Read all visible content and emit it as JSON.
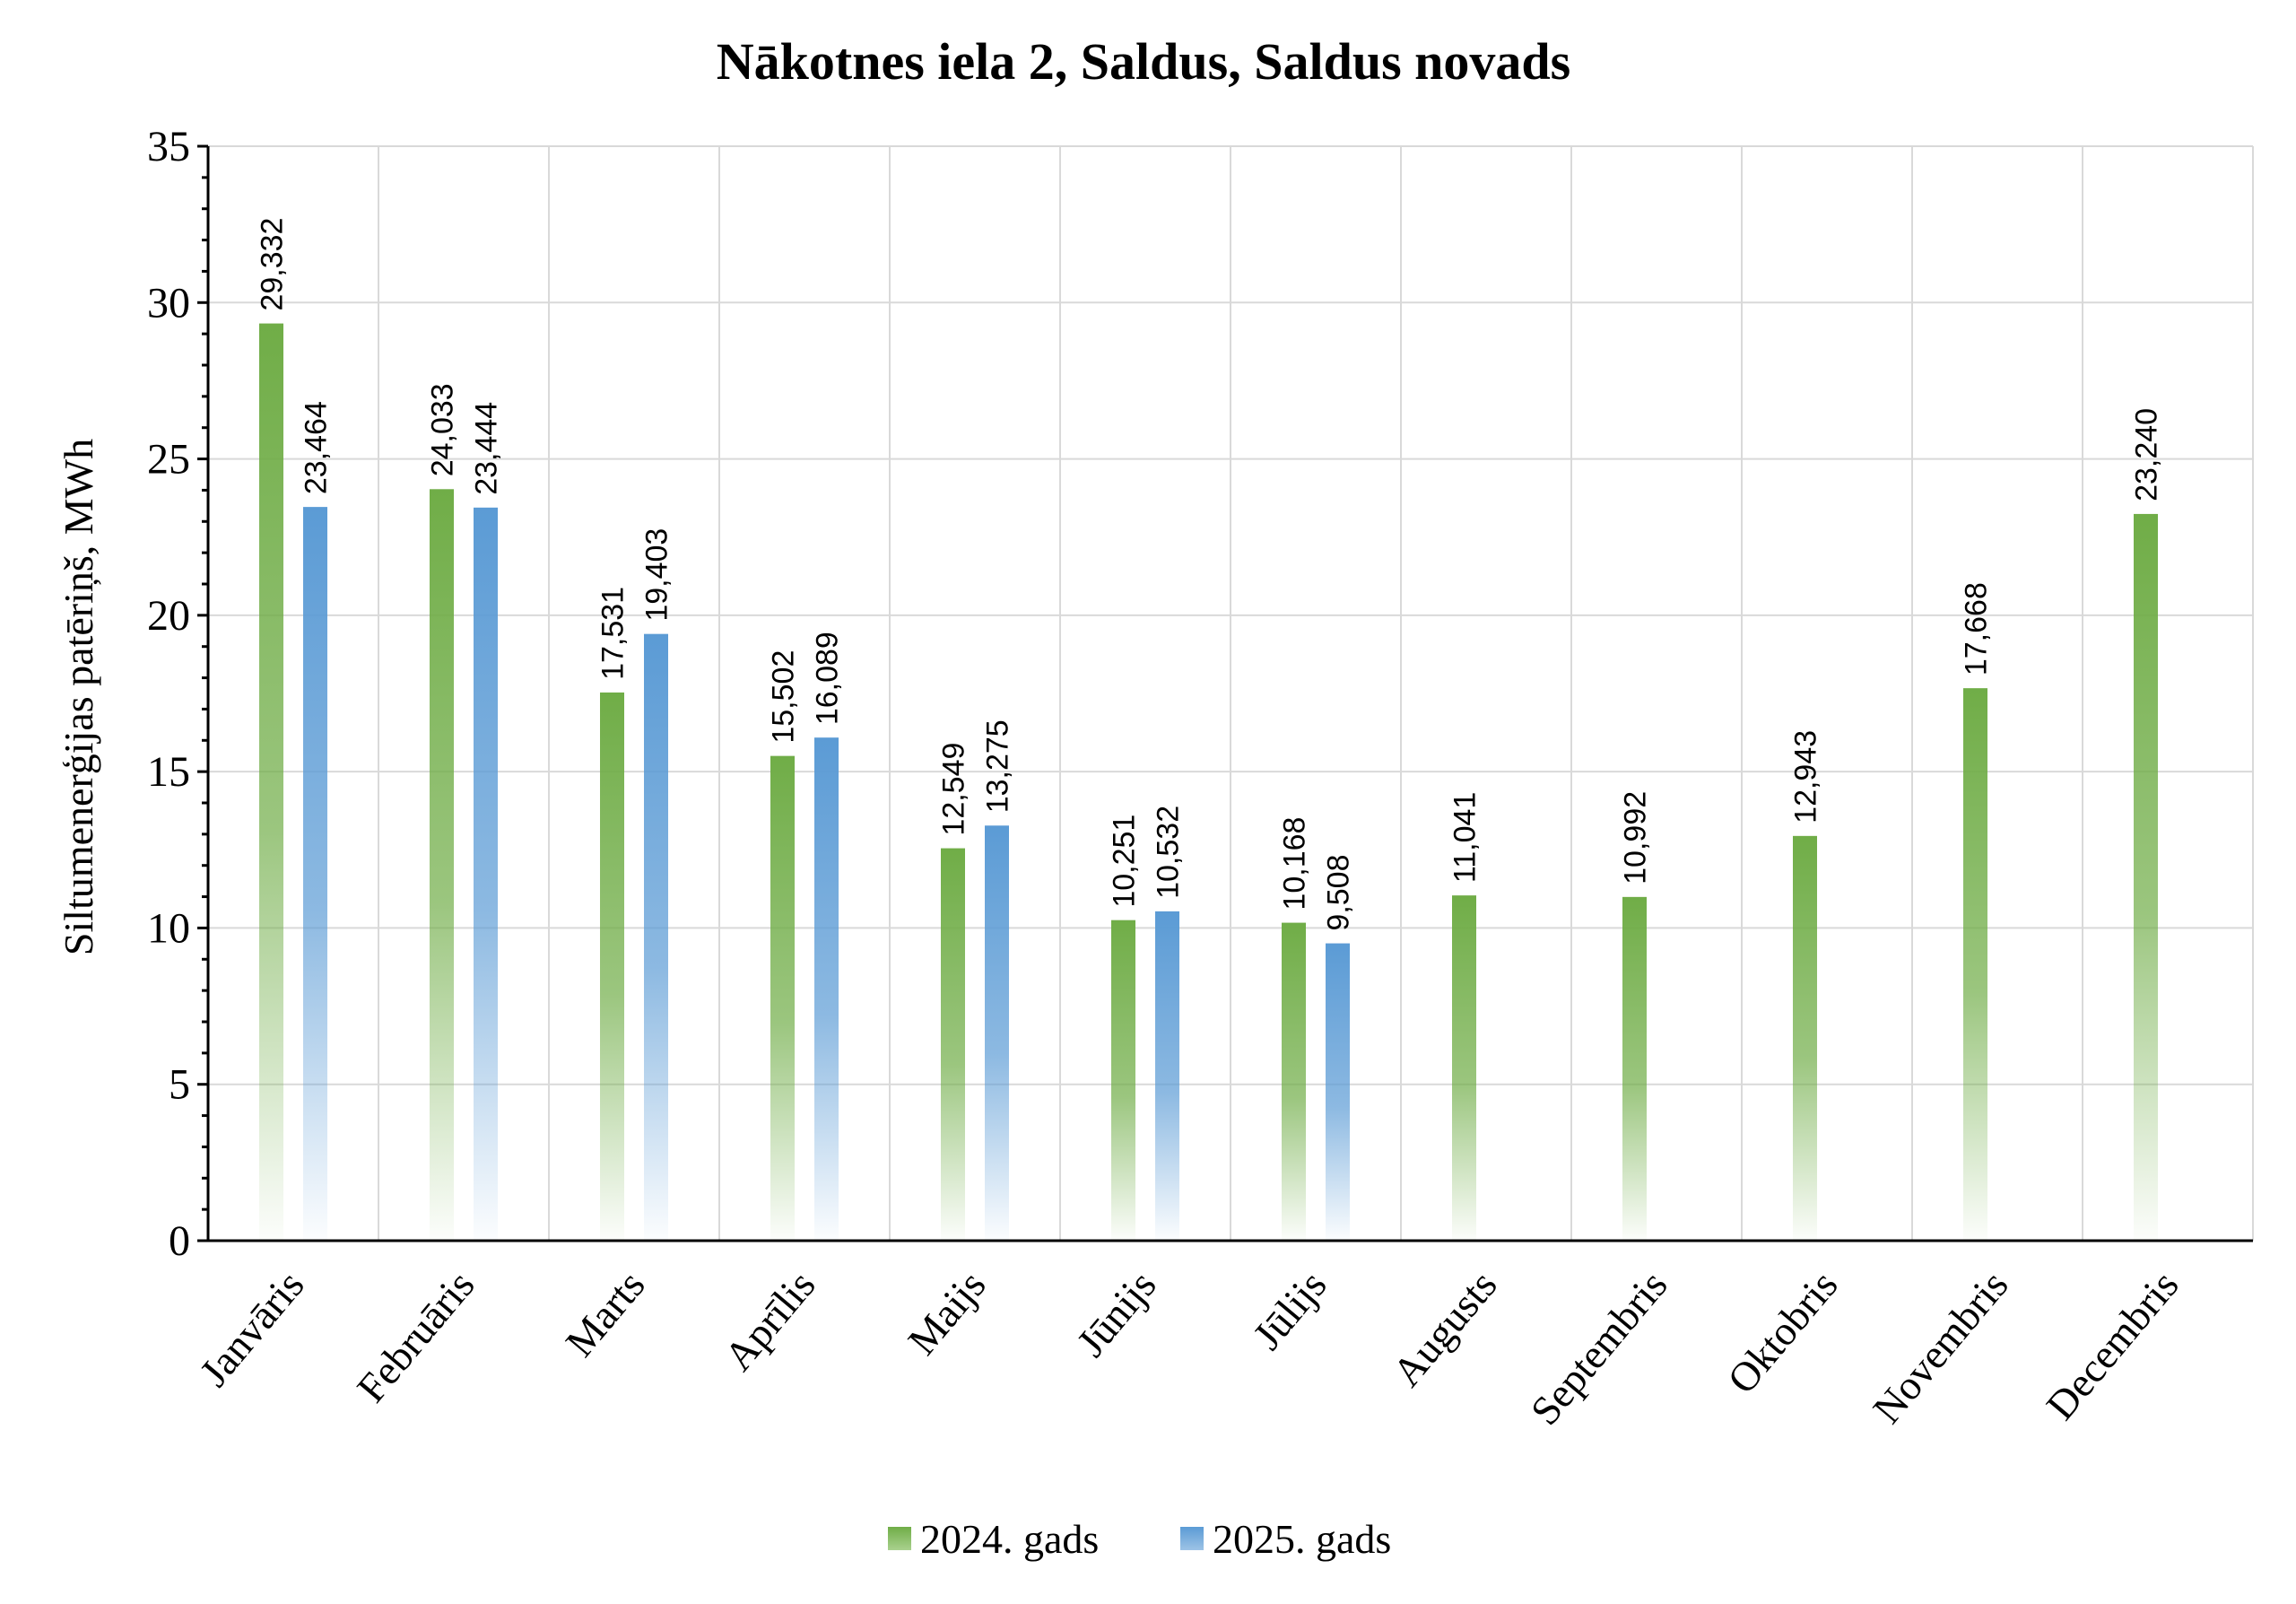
{
  "chart_data": {
    "type": "bar",
    "title": "Nākotnes iela 2, Saldus, Saldus novads",
    "xlabel": "",
    "ylabel": "Siltumenerģijas patēriņš, MWh",
    "ylim": [
      0,
      35
    ],
    "yticks": [
      0,
      5,
      10,
      15,
      20,
      25,
      30,
      35
    ],
    "categories": [
      "Janvāris",
      "Februāris",
      "Marts",
      "Aprīlis",
      "Maijs",
      "Jūnijs",
      "Jūlijs",
      "Augusts",
      "Septembris",
      "Oktobris",
      "Novembris",
      "Decembris"
    ],
    "series": [
      {
        "name": "2024. gads",
        "color": "#70ad47",
        "values": [
          29.332,
          24.033,
          17.531,
          15.502,
          12.549,
          10.251,
          10.168,
          11.041,
          10.992,
          12.943,
          17.668,
          23.24
        ],
        "labels": [
          "29,332",
          "24,033",
          "17,531",
          "15,502",
          "12,549",
          "10,251",
          "10,168",
          "11,041",
          "10,992",
          "12,943",
          "17,668",
          "23,240"
        ]
      },
      {
        "name": "2025. gads",
        "color": "#5b9bd5",
        "values": [
          23.464,
          23.444,
          19.403,
          16.089,
          13.275,
          10.532,
          9.508,
          null,
          null,
          null,
          null,
          null
        ],
        "labels": [
          "23,464",
          "23,444",
          "19,403",
          "16,089",
          "13,275",
          "10,532",
          "9,508",
          "",
          "",
          "",
          "",
          ""
        ]
      }
    ],
    "grid": true,
    "legend_position": "bottom-center"
  }
}
